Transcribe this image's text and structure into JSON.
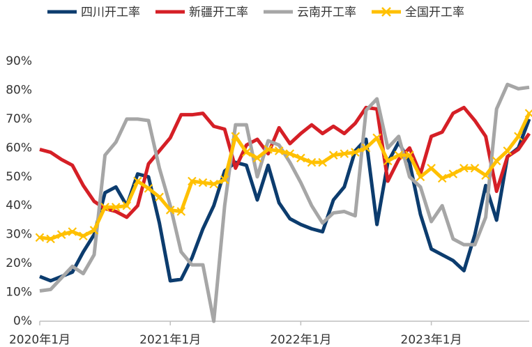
{
  "chart_data": {
    "type": "line",
    "categories": [
      "2020年1月",
      null,
      null,
      null,
      null,
      null,
      null,
      null,
      null,
      null,
      null,
      null,
      "2021年1月",
      null,
      null,
      null,
      null,
      null,
      null,
      null,
      null,
      null,
      null,
      null,
      "2022年1月",
      null,
      null,
      null,
      null,
      null,
      null,
      null,
      null,
      null,
      null,
      null,
      "2023年1月",
      null,
      null,
      null,
      null,
      null,
      null,
      null,
      null,
      null
    ],
    "series": [
      {
        "name": "四川开工率",
        "color": "#0c3c6e",
        "values": [
          15.5,
          14,
          15.5,
          17,
          24,
          30,
          44.5,
          46.5,
          40,
          51,
          50,
          34,
          14,
          14.5,
          22,
          32,
          40,
          52,
          55,
          54,
          42,
          54,
          41,
          35.5,
          33.5,
          32,
          31,
          42,
          46.5,
          59,
          63,
          33.5,
          55,
          62,
          55,
          37,
          25,
          23,
          21,
          17.5,
          30,
          47,
          35,
          57,
          60,
          70
        ]
      },
      {
        "name": "新疆开工率",
        "color": "#d51f26",
        "values": [
          59.5,
          58.5,
          56,
          54,
          47,
          41.5,
          39,
          38,
          36,
          40,
          54.5,
          59,
          63.5,
          71.5,
          71.5,
          72,
          67.5,
          66.5,
          53,
          61,
          63,
          58,
          67,
          61.5,
          65,
          68,
          65,
          67.5,
          65,
          68.5,
          74,
          73.5,
          48.5,
          56,
          60,
          51,
          64,
          65.5,
          72,
          74,
          69.5,
          64,
          45,
          57,
          59.5,
          65
        ]
      },
      {
        "name": "云南开工率",
        "color": "#a6a6a6",
        "values": [
          10.5,
          11,
          15,
          19,
          16.5,
          23,
          57.5,
          62,
          70,
          70,
          69.5,
          53,
          40,
          24,
          19.5,
          19.5,
          0,
          40,
          68,
          68,
          50,
          62.5,
          61,
          55,
          48,
          40,
          34,
          37.5,
          38,
          36.5,
          73,
          77,
          60,
          64,
          50,
          46.5,
          34.5,
          40,
          28.5,
          26.5,
          26.5,
          36,
          73.5,
          82,
          80.5,
          81
        ]
      },
      {
        "name": "全国开工率",
        "color": "#ffc000",
        "marker": "x",
        "values": [
          29,
          28.5,
          30,
          31,
          29.5,
          31.5,
          39.5,
          39.5,
          40,
          48.5,
          46,
          43,
          38.5,
          38,
          48.5,
          48,
          47.5,
          49,
          64,
          58.5,
          56.5,
          59.5,
          59,
          58,
          56.5,
          55,
          55,
          57.5,
          58,
          58.5,
          60,
          63.5,
          55.5,
          57.5,
          57.5,
          50,
          53,
          49.5,
          51,
          53,
          53,
          50.5,
          55.5,
          59,
          64,
          72
        ]
      }
    ],
    "ylim": [
      0,
      90
    ],
    "yticks": [
      {
        "value": 0,
        "label": "0%"
      },
      {
        "value": 10,
        "label": "10%"
      },
      {
        "value": 20,
        "label": "20%"
      },
      {
        "value": 30,
        "label": "30%"
      },
      {
        "value": 40,
        "label": "40%"
      },
      {
        "value": 50,
        "label": "50%"
      },
      {
        "value": 60,
        "label": "60%"
      },
      {
        "value": 70,
        "label": "70%"
      },
      {
        "value": 80,
        "label": "80%"
      },
      {
        "value": 90,
        "label": "90%"
      }
    ],
    "legend": "top",
    "grid": false
  }
}
